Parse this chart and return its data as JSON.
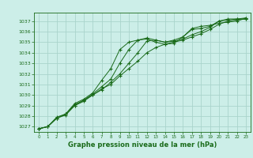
{
  "title": "Graphe pression niveau de la mer (hPa)",
  "background_color": "#cceee8",
  "grid_color": "#aad4cc",
  "line_color": "#1a6b1a",
  "marker_color": "#1a6b1a",
  "xlim": [
    -0.5,
    23.5
  ],
  "ylim": [
    1026.5,
    1037.8
  ],
  "yticks": [
    1027,
    1028,
    1029,
    1030,
    1031,
    1032,
    1033,
    1034,
    1035,
    1036,
    1037
  ],
  "xticks": [
    0,
    1,
    2,
    3,
    4,
    5,
    6,
    7,
    8,
    9,
    10,
    11,
    12,
    13,
    14,
    15,
    16,
    17,
    18,
    19,
    20,
    21,
    22,
    23
  ],
  "curves": [
    [
      1026.8,
      1027.0,
      1027.8,
      1028.1,
      1029.0,
      1029.5,
      1030.0,
      1030.5,
      1031.2,
      1032.0,
      1033.0,
      1034.0,
      1035.1,
      1035.2,
      1035.0,
      1035.2,
      1035.5,
      1036.2,
      1036.3,
      1036.5,
      1037.0,
      1037.1,
      1037.2,
      1037.2
    ],
    [
      1026.8,
      1027.0,
      1027.8,
      1028.2,
      1029.1,
      1029.5,
      1030.1,
      1030.8,
      1031.5,
      1033.0,
      1034.3,
      1035.2,
      1035.4,
      1035.2,
      1035.0,
      1035.1,
      1035.3,
      1035.7,
      1036.0,
      1036.4,
      1037.0,
      1037.2,
      1037.2,
      1037.3
    ],
    [
      1026.8,
      1027.0,
      1027.8,
      1028.2,
      1029.2,
      1029.6,
      1030.2,
      1031.4,
      1032.5,
      1034.3,
      1035.0,
      1035.2,
      1035.3,
      1035.0,
      1034.8,
      1034.9,
      1035.5,
      1036.3,
      1036.5,
      1036.6,
      1036.8,
      1036.9,
      1037.0,
      1037.3
    ],
    [
      1026.8,
      1027.0,
      1027.9,
      1028.2,
      1029.0,
      1029.4,
      1030.0,
      1030.6,
      1031.0,
      1031.8,
      1032.5,
      1033.2,
      1034.0,
      1034.5,
      1034.8,
      1035.0,
      1035.2,
      1035.5,
      1035.8,
      1036.2,
      1036.7,
      1037.0,
      1037.1,
      1037.2
    ]
  ],
  "ylabel_fontsize": 5,
  "xlabel_fontsize": 5,
  "title_fontsize": 6,
  "marker_size": 1.8,
  "linewidth": 0.7
}
